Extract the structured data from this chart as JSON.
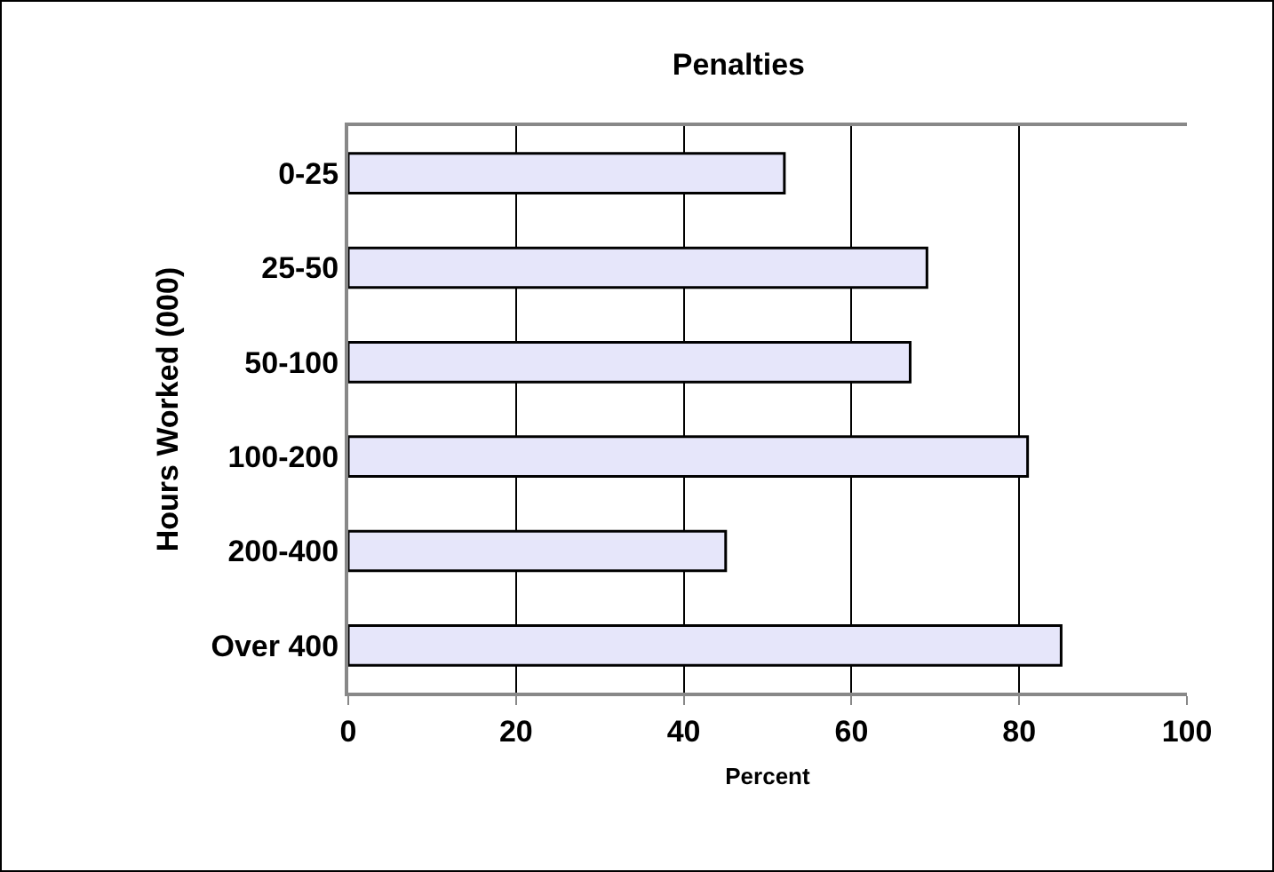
{
  "chart_data": {
    "type": "bar",
    "orientation": "horizontal",
    "title": "Penalties",
    "xlabel": "Percent",
    "ylabel": "Hours Worked (000)",
    "categories": [
      "0-25",
      "25-50",
      "50-100",
      "100-200",
      "200-400",
      "Over 400"
    ],
    "values": [
      52,
      69,
      67,
      81,
      45,
      85
    ],
    "color": "#e6e6fa",
    "xlim": [
      0,
      100
    ],
    "xticks": [
      0,
      20,
      40,
      60,
      80,
      100
    ],
    "grid": "x",
    "legend": false
  }
}
